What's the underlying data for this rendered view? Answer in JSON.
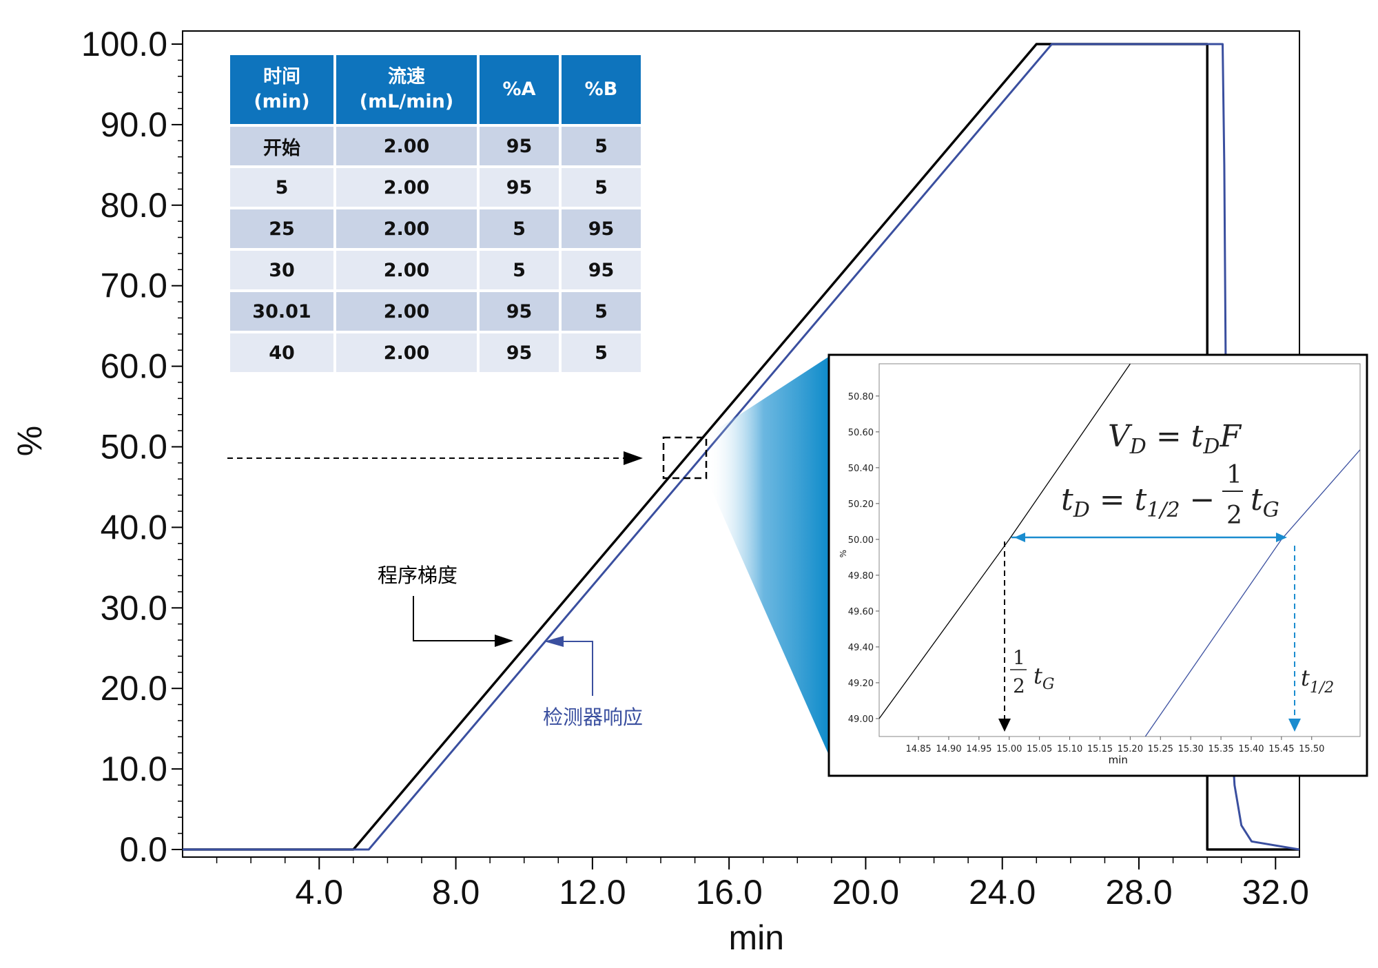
{
  "chart_data": [
    {
      "type": "line",
      "title": "",
      "xlabel": "min",
      "ylabel": "%",
      "xlim": [
        0,
        32.7
      ],
      "ylim": [
        0,
        100
      ],
      "x_ticks": [
        "4.0",
        "8.0",
        "12.0",
        "16.0",
        "20.0",
        "24.0",
        "28.0",
        "32.0"
      ],
      "y_ticks": [
        "0.0",
        "10.0",
        "20.0",
        "30.0",
        "40.0",
        "50.0",
        "60.0",
        "70.0",
        "80.0",
        "90.0",
        "100.0"
      ],
      "series": [
        {
          "name": "程序梯度",
          "color": "#000000",
          "points": [
            [
              0,
              0
            ],
            [
              5.0,
              0
            ],
            [
              25.0,
              100
            ],
            [
              30.0,
              100
            ],
            [
              30.0,
              0
            ],
            [
              32.7,
              0
            ]
          ]
        },
        {
          "name": "检测器响应",
          "color": "#3a4f9f",
          "points": [
            [
              0,
              0
            ],
            [
              5.45,
              0
            ],
            [
              25.45,
              100
            ],
            [
              30.45,
              100
            ],
            [
              30.5,
              85
            ],
            [
              30.55,
              55
            ],
            [
              30.6,
              30
            ],
            [
              30.7,
              15
            ],
            [
              30.8,
              8
            ],
            [
              31.0,
              3
            ],
            [
              31.3,
              1
            ],
            [
              32.7,
              0
            ]
          ]
        }
      ],
      "table": {
        "headers": [
          [
            "时间",
            "(min)"
          ],
          [
            "流速",
            "(mL/min)"
          ],
          [
            "%A"
          ],
          [
            "%B"
          ]
        ],
        "rows": [
          [
            "开始",
            "2.00",
            "95",
            "5"
          ],
          [
            "5",
            "2.00",
            "95",
            "5"
          ],
          [
            "25",
            "2.00",
            "5",
            "95"
          ],
          [
            "30",
            "2.00",
            "5",
            "95"
          ],
          [
            "30.01",
            "2.00",
            "95",
            "5"
          ],
          [
            "40",
            "2.00",
            "95",
            "5"
          ]
        ]
      }
    },
    {
      "type": "line",
      "title": "",
      "xlabel": "min",
      "ylabel": "%",
      "xlim": [
        14.785,
        15.58
      ],
      "ylim": [
        48.9,
        50.98
      ],
      "x_ticks": [
        "14.85",
        "14.90",
        "14.95",
        "15.00",
        "15.05",
        "15.10",
        "15.15",
        "15.20",
        "15.25",
        "15.30",
        "15.35",
        "15.40",
        "15.45",
        "15.50"
      ],
      "y_ticks": [
        "49.00",
        "49.20",
        "49.40",
        "49.60",
        "49.80",
        "50.00",
        "50.20",
        "50.40",
        "50.60",
        "50.80"
      ],
      "series": [
        {
          "name": "",
          "color": "#000000",
          "points": [
            [
              14.785,
              49.0
            ],
            [
              15.0,
              50.0
            ],
            [
              15.2,
              50.98
            ]
          ]
        },
        {
          "name": "",
          "color": "#3a4f9f",
          "points": [
            [
              15.225,
              48.9
            ],
            [
              15.45,
              50.0
            ],
            [
              15.58,
              50.5
            ]
          ]
        }
      ],
      "formulas": {
        "line1": "V_D = t_D F",
        "line2": "t_D = t_1/2 − ½ t_G"
      },
      "annotations": {
        "half_tg_x": 15.0,
        "t_half_x": 15.45,
        "marker_y": 50.0
      }
    }
  ],
  "labels": {
    "programmed_gradient": "程序梯度",
    "detector_response": "检测器响应"
  },
  "colors": {
    "program": "#000000",
    "detector": "#3a4f9f",
    "accent_blue": "#0e74bd",
    "arrow_blue": "#1a8ccf"
  }
}
